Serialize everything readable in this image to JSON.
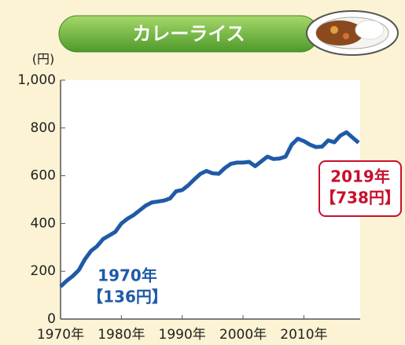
{
  "chart_data": {
    "type": "line",
    "title": "カレーライス",
    "y_unit": "(円)",
    "x": [
      1970,
      1971,
      1972,
      1973,
      1974,
      1975,
      1976,
      1977,
      1978,
      1979,
      1980,
      1981,
      1982,
      1983,
      1984,
      1985,
      1986,
      1987,
      1988,
      1989,
      1990,
      1991,
      1992,
      1993,
      1994,
      1995,
      1996,
      1997,
      1998,
      1999,
      2000,
      2001,
      2002,
      2003,
      2004,
      2005,
      2006,
      2007,
      2008,
      2009,
      2010,
      2011,
      2012,
      2013,
      2014,
      2015,
      2016,
      2017,
      2018,
      2019
    ],
    "series": [
      {
        "color": "#1f5aa6",
        "values": [
          136,
          160,
          180,
          205,
          250,
          285,
          305,
          335,
          350,
          365,
          400,
          420,
          435,
          455,
          475,
          488,
          492,
          496,
          505,
          535,
          540,
          560,
          585,
          608,
          620,
          610,
          608,
          632,
          650,
          655,
          655,
          658,
          640,
          660,
          680,
          670,
          672,
          680,
          730,
          755,
          745,
          730,
          720,
          722,
          748,
          740,
          768,
          782,
          760,
          738
        ]
      }
    ],
    "xlim": [
      1970,
      2019
    ],
    "ylim": [
      0,
      1000
    ],
    "xticks": [
      {
        "value": 1970,
        "label": "1970年"
      },
      {
        "value": 1980,
        "label": "1980年"
      },
      {
        "value": 1990,
        "label": "1990年"
      },
      {
        "value": 2000,
        "label": "2000年"
      },
      {
        "value": 2010,
        "label": "2010年"
      }
    ],
    "yticks": [
      0,
      200,
      400,
      600,
      800,
      {
        "value": 1000,
        "label": "1,000"
      }
    ],
    "annotations": [
      {
        "lines": [
          "1970年",
          "【136円】"
        ],
        "color": "#1f5aa6"
      },
      {
        "lines": [
          "2019年",
          "【738円】"
        ],
        "color": "#c8102e"
      }
    ]
  }
}
